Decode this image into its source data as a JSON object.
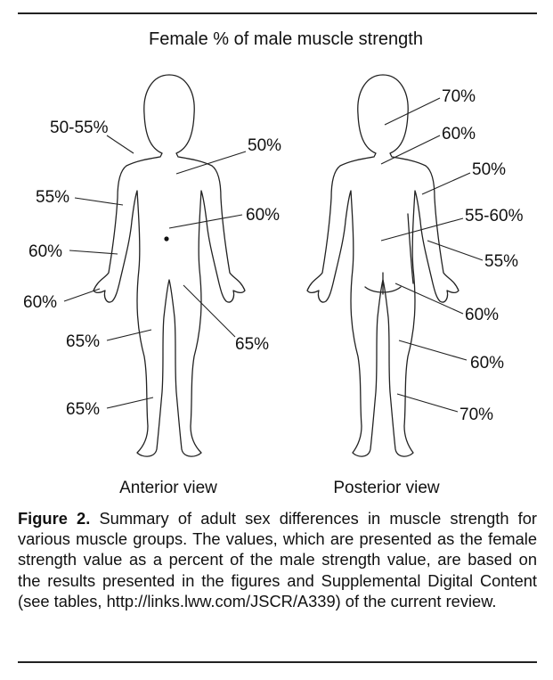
{
  "title": "Female % of male muscle strength",
  "anterior": {
    "view_label": "Anterior view",
    "labels": [
      "50-55%",
      "50%",
      "55%",
      "60%",
      "60%",
      "60%",
      "65%",
      "65%",
      "65%"
    ]
  },
  "posterior": {
    "view_label": "Posterior view",
    "labels": [
      "70%",
      "60%",
      "50%",
      "55-60%",
      "55%",
      "60%",
      "60%",
      "70%"
    ]
  },
  "caption": {
    "label": "Figure 2.",
    "text": " Summary of adult sex differences in muscle strength for various muscle groups. The values, which are presented as the female strength value as a percent of the male strength value, are based on the results presented in the figures and Supplemental Digital Content (see tables, http://links.lww.com/JSCR/A339) of the current review."
  }
}
